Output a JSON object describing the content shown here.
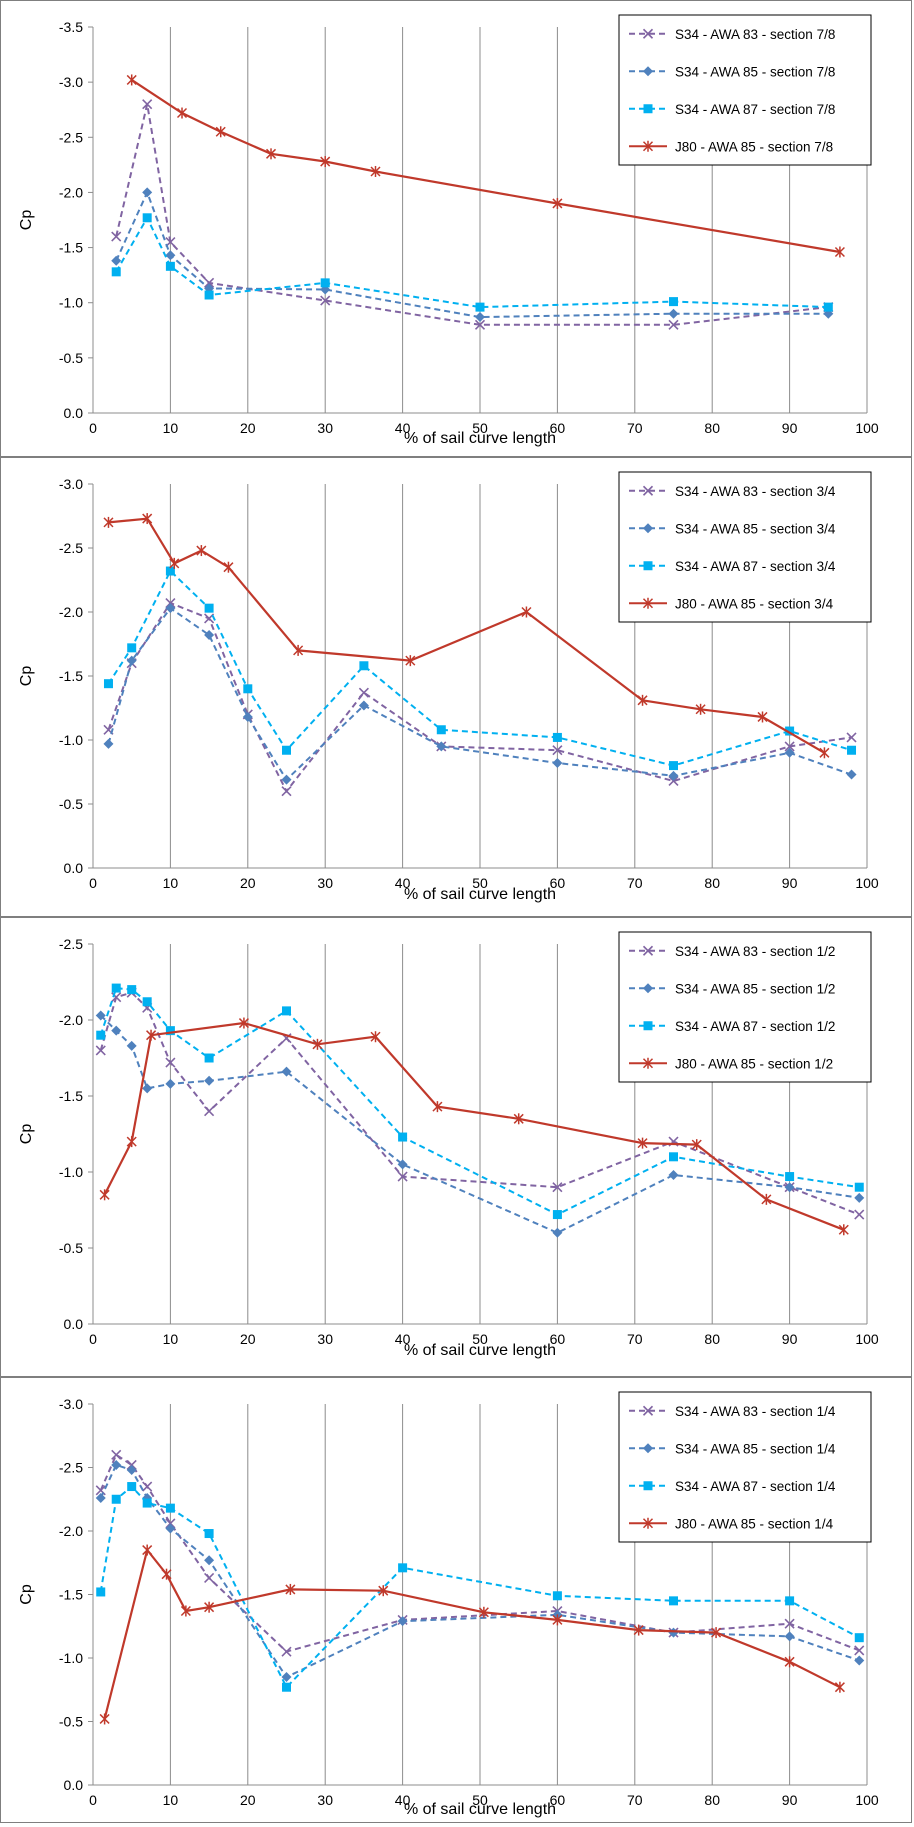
{
  "chart_data": [
    {
      "type": "line",
      "xlabel": "% of sail curve length",
      "ylabel": "Cp",
      "xlim": [
        0,
        100
      ],
      "ylim": [
        0.0,
        -3.5
      ],
      "y_inverted": true,
      "x_ticks": [
        0,
        10,
        20,
        30,
        40,
        50,
        60,
        70,
        80,
        90,
        100
      ],
      "x_tick_labels": [
        "0",
        "10",
        "20",
        "30",
        "40",
        "50",
        "60",
        "70",
        "80",
        "90",
        "100"
      ],
      "y_ticks": [
        0.0,
        -0.5,
        -1.0,
        -1.5,
        -2.0,
        -2.5,
        -3.0,
        -3.5
      ],
      "y_tick_labels": [
        "0.0",
        "-0.5",
        "-1.0",
        "-1.5",
        "-2.0",
        "-2.5",
        "-3.0",
        "-3.5"
      ],
      "grid": "vertical",
      "legend_position": "top-right",
      "series": [
        {
          "name": "S34 - AWA 83 - section 7/8",
          "color": "#8064a2",
          "dashed": true,
          "marker": "x",
          "x": [
            3,
            7,
            10,
            15,
            30,
            50,
            75,
            95
          ],
          "y": [
            -1.6,
            -2.8,
            -1.55,
            -1.18,
            -1.02,
            -0.8,
            -0.8,
            -0.96
          ]
        },
        {
          "name": "S34 - AWA 85 - section 7/8",
          "color": "#4f81bd",
          "dashed": true,
          "marker": "diamond",
          "x": [
            3,
            7,
            10,
            15,
            30,
            50,
            75,
            95
          ],
          "y": [
            -1.38,
            -2.0,
            -1.43,
            -1.13,
            -1.12,
            -0.87,
            -0.9,
            -0.9
          ]
        },
        {
          "name": "S34 - AWA 87 - section 7/8",
          "color": "#00b0f0",
          "dashed": true,
          "marker": "square",
          "x": [
            3,
            7,
            10,
            15,
            30,
            50,
            75,
            95
          ],
          "y": [
            -1.28,
            -1.77,
            -1.33,
            -1.07,
            -1.18,
            -0.96,
            -1.01,
            -0.96
          ]
        },
        {
          "name": "J80 - AWA 85 - section 7/8",
          "color": "#c0392b",
          "dashed": false,
          "marker": "star",
          "x": [
            5,
            11.5,
            16.5,
            23,
            30,
            36.5,
            60,
            96.5
          ],
          "y": [
            -3.02,
            -2.72,
            -2.55,
            -2.35,
            -2.28,
            -2.19,
            -1.9,
            -1.46
          ]
        }
      ]
    },
    {
      "type": "line",
      "xlabel": "% of sail curve length",
      "ylabel": "Cp",
      "xlim": [
        0,
        100
      ],
      "ylim": [
        0.0,
        -3.0
      ],
      "y_inverted": true,
      "x_ticks": [
        0,
        10,
        20,
        30,
        40,
        50,
        60,
        70,
        80,
        90,
        100
      ],
      "x_tick_labels": [
        "0",
        "10",
        "20",
        "30",
        "40",
        "50",
        "60",
        "70",
        "80",
        "90",
        "100"
      ],
      "y_ticks": [
        0.0,
        -0.5,
        -1.0,
        -1.5,
        -2.0,
        -2.5,
        -3.0
      ],
      "y_tick_labels": [
        "0.0",
        "-0.5",
        "-1.0",
        "-1.5",
        "-2.0",
        "-2.5",
        "-3.0"
      ],
      "grid": "vertical",
      "legend_position": "top-right",
      "series": [
        {
          "name": "S34 - AWA 83 - section 3/4",
          "color": "#8064a2",
          "dashed": true,
          "marker": "x",
          "x": [
            2,
            5,
            10,
            15,
            20,
            25,
            35,
            45,
            60,
            75,
            90,
            98
          ],
          "y": [
            -1.08,
            -1.6,
            -2.07,
            -1.95,
            -1.2,
            -0.6,
            -1.37,
            -0.95,
            -0.92,
            -0.68,
            -0.95,
            -1.02
          ]
        },
        {
          "name": "S34 - AWA 85 - section 3/4",
          "color": "#4f81bd",
          "dashed": true,
          "marker": "diamond",
          "x": [
            2,
            5,
            10,
            15,
            20,
            25,
            35,
            45,
            60,
            75,
            90,
            98
          ],
          "y": [
            -0.97,
            -1.62,
            -2.03,
            -1.82,
            -1.18,
            -0.69,
            -1.27,
            -0.95,
            -0.82,
            -0.72,
            -0.9,
            -0.73
          ]
        },
        {
          "name": "S34 - AWA 87 - section 3/4",
          "color": "#00b0f0",
          "dashed": true,
          "marker": "square",
          "x": [
            2,
            5,
            10,
            15,
            20,
            25,
            35,
            45,
            60,
            75,
            90,
            98
          ],
          "y": [
            -1.44,
            -1.72,
            -2.32,
            -2.03,
            -1.4,
            -0.92,
            -1.58,
            -1.08,
            -1.02,
            -0.8,
            -1.07,
            -0.92
          ]
        },
        {
          "name": "J80 - AWA 85 - section 3/4",
          "color": "#c0392b",
          "dashed": false,
          "marker": "star",
          "x": [
            2,
            7,
            10.5,
            14,
            17.5,
            26.5,
            41,
            56,
            71,
            78.5,
            86.5,
            94.5
          ],
          "y": [
            -2.7,
            -2.73,
            -2.38,
            -2.48,
            -2.35,
            -1.7,
            -1.62,
            -2.0,
            -1.31,
            -1.24,
            -1.18,
            -0.9
          ]
        }
      ]
    },
    {
      "type": "line",
      "xlabel": "% of sail curve length",
      "ylabel": "Cp",
      "xlim": [
        0,
        100
      ],
      "ylim": [
        0.0,
        -2.5
      ],
      "y_inverted": true,
      "x_ticks": [
        0,
        10,
        20,
        30,
        40,
        50,
        60,
        70,
        80,
        90,
        100
      ],
      "x_tick_labels": [
        "0",
        "10",
        "20",
        "30",
        "40",
        "50",
        "60",
        "70",
        "80",
        "90",
        "100"
      ],
      "y_ticks": [
        0.0,
        -0.5,
        -1.0,
        -1.5,
        -2.0,
        -2.5
      ],
      "y_tick_labels": [
        "0.0",
        "-0.5",
        "-1.0",
        "-1.5",
        "-2.0",
        "-2.5"
      ],
      "grid": "vertical",
      "legend_position": "top-right",
      "series": [
        {
          "name": "S34 - AWA 83 - section 1/2",
          "color": "#8064a2",
          "dashed": true,
          "marker": "x",
          "x": [
            1,
            3,
            5,
            7,
            10,
            15,
            25,
            40,
            60,
            75,
            90,
            99
          ],
          "y": [
            -1.8,
            -2.15,
            -2.18,
            -2.08,
            -1.72,
            -1.4,
            -1.88,
            -0.97,
            -0.9,
            -1.2,
            -0.9,
            -0.72
          ]
        },
        {
          "name": "S34 - AWA 85 - section 1/2",
          "color": "#4f81bd",
          "dashed": true,
          "marker": "diamond",
          "x": [
            1,
            3,
            5,
            7,
            10,
            15,
            25,
            40,
            60,
            75,
            90,
            99
          ],
          "y": [
            -2.03,
            -1.93,
            -1.83,
            -1.55,
            -1.58,
            -1.6,
            -1.66,
            -1.05,
            -0.6,
            -0.98,
            -0.9,
            -0.83
          ]
        },
        {
          "name": "S34 - AWA 87 - section 1/2",
          "color": "#00b0f0",
          "dashed": true,
          "marker": "square",
          "x": [
            1,
            3,
            5,
            7,
            10,
            15,
            25,
            40,
            60,
            75,
            90,
            99
          ],
          "y": [
            -1.9,
            -2.21,
            -2.2,
            -2.12,
            -1.93,
            -1.75,
            -2.06,
            -1.23,
            -0.72,
            -1.1,
            -0.97,
            -0.9
          ]
        },
        {
          "name": "J80 - AWA 85 - section 1/2",
          "color": "#c0392b",
          "dashed": false,
          "marker": "star",
          "x": [
            1.5,
            5,
            7.5,
            19.5,
            29,
            36.5,
            44.5,
            55,
            71,
            78,
            87,
            97
          ],
          "y": [
            -0.85,
            -1.2,
            -1.9,
            -1.98,
            -1.84,
            -1.89,
            -1.43,
            -1.35,
            -1.19,
            -1.18,
            -0.82,
            -0.62
          ]
        }
      ]
    },
    {
      "type": "line",
      "xlabel": "% of sail curve length",
      "ylabel": "Cp",
      "xlim": [
        0,
        100
      ],
      "ylim": [
        0.0,
        -3.0
      ],
      "y_inverted": true,
      "x_ticks": [
        0,
        10,
        20,
        30,
        40,
        50,
        60,
        70,
        80,
        90,
        100
      ],
      "x_tick_labels": [
        "0",
        "10",
        "20",
        "30",
        "40",
        "50",
        "60",
        "70",
        "80",
        "90",
        "100"
      ],
      "y_ticks": [
        0.0,
        -0.5,
        -1.0,
        -1.5,
        -2.0,
        -2.5,
        -3.0
      ],
      "y_tick_labels": [
        "0.0",
        "-0.5",
        "-1.0",
        "-1.5",
        "-2.0",
        "-2.5",
        "-3.0"
      ],
      "grid": "vertical",
      "legend_position": "top-right",
      "series": [
        {
          "name": "S34 - AWA 83 - section 1/4",
          "color": "#8064a2",
          "dashed": true,
          "marker": "x",
          "x": [
            1,
            3,
            5,
            7,
            10,
            15,
            25,
            40,
            60,
            75,
            90,
            99
          ],
          "y": [
            -2.32,
            -2.6,
            -2.52,
            -2.35,
            -2.06,
            -1.63,
            -1.05,
            -1.3,
            -1.37,
            -1.2,
            -1.27,
            -1.06
          ]
        },
        {
          "name": "S34 - AWA 85 - section 1/4",
          "color": "#4f81bd",
          "dashed": true,
          "marker": "diamond",
          "x": [
            1,
            3,
            5,
            7,
            10,
            15,
            25,
            40,
            60,
            75,
            90,
            99
          ],
          "y": [
            -2.26,
            -2.52,
            -2.48,
            -2.26,
            -2.02,
            -1.77,
            -0.85,
            -1.29,
            -1.34,
            -1.2,
            -1.17,
            -0.98
          ]
        },
        {
          "name": "S34 - AWA 87 - section 1/4",
          "color": "#00b0f0",
          "dashed": true,
          "marker": "square",
          "x": [
            1,
            3,
            5,
            7,
            10,
            15,
            25,
            40,
            60,
            75,
            90,
            99
          ],
          "y": [
            -1.52,
            -2.25,
            -2.35,
            -2.22,
            -2.18,
            -1.98,
            -0.77,
            -1.71,
            -1.49,
            -1.45,
            -1.45,
            -1.16
          ]
        },
        {
          "name": "J80 - AWA 85 - section 1/4",
          "color": "#c0392b",
          "dashed": false,
          "marker": "star",
          "x": [
            1.5,
            7,
            9.5,
            12,
            15,
            25.5,
            37.5,
            50.5,
            60,
            70.5,
            80.5,
            90,
            96.5
          ],
          "y": [
            -0.52,
            -1.85,
            -1.66,
            -1.37,
            -1.4,
            -1.54,
            -1.53,
            -1.36,
            -1.3,
            -1.22,
            -1.2,
            -0.97,
            -0.77
          ]
        }
      ]
    }
  ]
}
